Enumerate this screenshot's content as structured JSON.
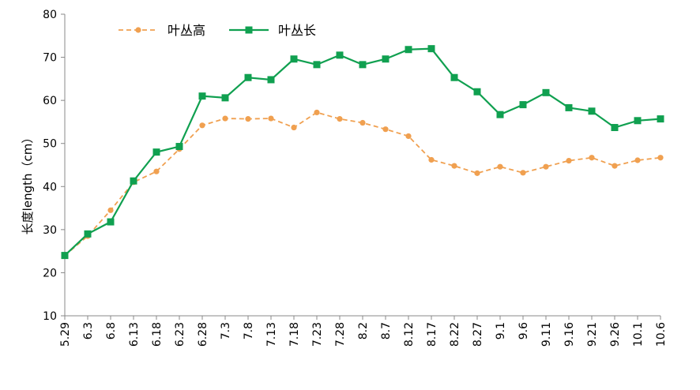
{
  "chart_data": {
    "type": "line",
    "title": "",
    "xlabel": "",
    "ylabel": "长度length（cm）",
    "ylim": [
      10,
      80
    ],
    "yticks": [
      10,
      20,
      30,
      40,
      50,
      60,
      70,
      80
    ],
    "grid": false,
    "legend_position": "top-left",
    "categories": [
      "5.29",
      "6.3",
      "6.8",
      "6.13",
      "6.18",
      "6.23",
      "6.28",
      "7.3",
      "7.8",
      "7.13",
      "7.18",
      "7.23",
      "7.28",
      "8.2",
      "8.7",
      "8.12",
      "8.17",
      "8.22",
      "8.27",
      "9.1",
      "9.6",
      "9.11",
      "9.16",
      "9.21",
      "9.26",
      "10.1",
      "10.6"
    ],
    "series": [
      {
        "name": "叶丛高",
        "color": "#f0a050",
        "style": "dashed",
        "marker": "circle",
        "values": [
          24.0,
          28.5,
          34.5,
          41.0,
          43.5,
          48.7,
          54.2,
          55.8,
          55.7,
          55.8,
          53.7,
          57.2,
          55.7,
          54.8,
          53.3,
          51.7,
          46.2,
          44.8,
          43.1,
          44.6,
          43.2,
          44.6,
          46.0,
          46.7,
          44.8,
          46.1,
          46.7
        ]
      },
      {
        "name": "叶丛长",
        "color": "#10a050",
        "style": "solid",
        "marker": "square",
        "values": [
          24.0,
          29.0,
          31.8,
          41.3,
          48.0,
          49.3,
          61.0,
          60.6,
          65.3,
          64.8,
          69.6,
          68.3,
          70.5,
          68.3,
          69.6,
          71.8,
          72.0,
          65.3,
          62.0,
          56.7,
          59.0,
          61.8,
          58.3,
          57.5,
          53.7,
          55.3,
          55.7
        ]
      }
    ]
  }
}
